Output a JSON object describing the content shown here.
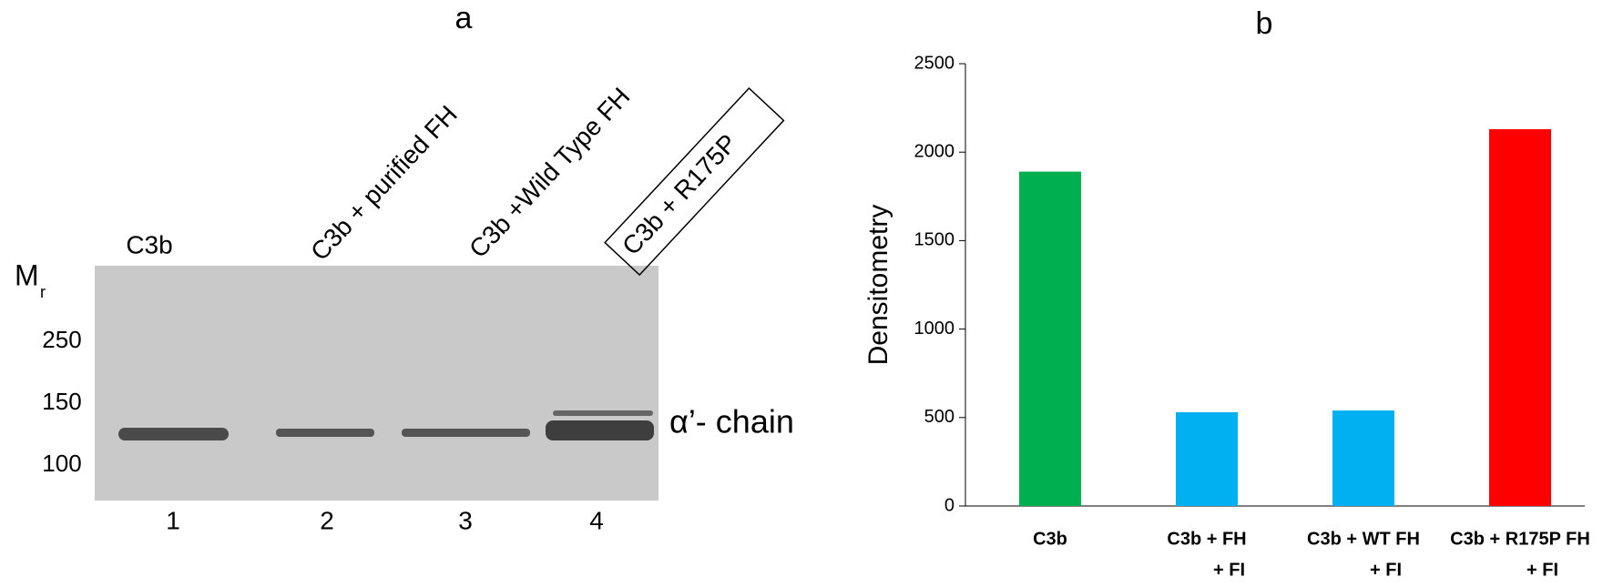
{
  "blot": {
    "panel_label": "a",
    "lane_labels": [
      "C3b",
      "C3b + purified FH",
      "C3b +Wild Type FH",
      "C3b + R175P"
    ],
    "mr_label": "M",
    "mr_subscript": "r",
    "markers": [
      "250",
      "150",
      "100"
    ],
    "band_label": "α’- chain",
    "lane_numbers": [
      "1",
      "2",
      "3",
      "4"
    ]
  },
  "chart_data": {
    "type": "bar",
    "title": "b",
    "y_label": "Densitometry",
    "categories": [
      [
        "C3b"
      ],
      [
        "C3b + FH",
        "+ FI"
      ],
      [
        "C3b + WT FH",
        "+ FI"
      ],
      [
        "C3b + R175P FH",
        "+ FI"
      ]
    ],
    "values": [
      1890,
      530,
      540,
      2130
    ],
    "colors": [
      "#00b050",
      "#00b0f0",
      "#00b0f0",
      "#ff0000"
    ],
    "ylim": [
      0,
      2500
    ],
    "yticks": [
      0,
      500,
      1000,
      1500,
      2000,
      2500
    ]
  }
}
